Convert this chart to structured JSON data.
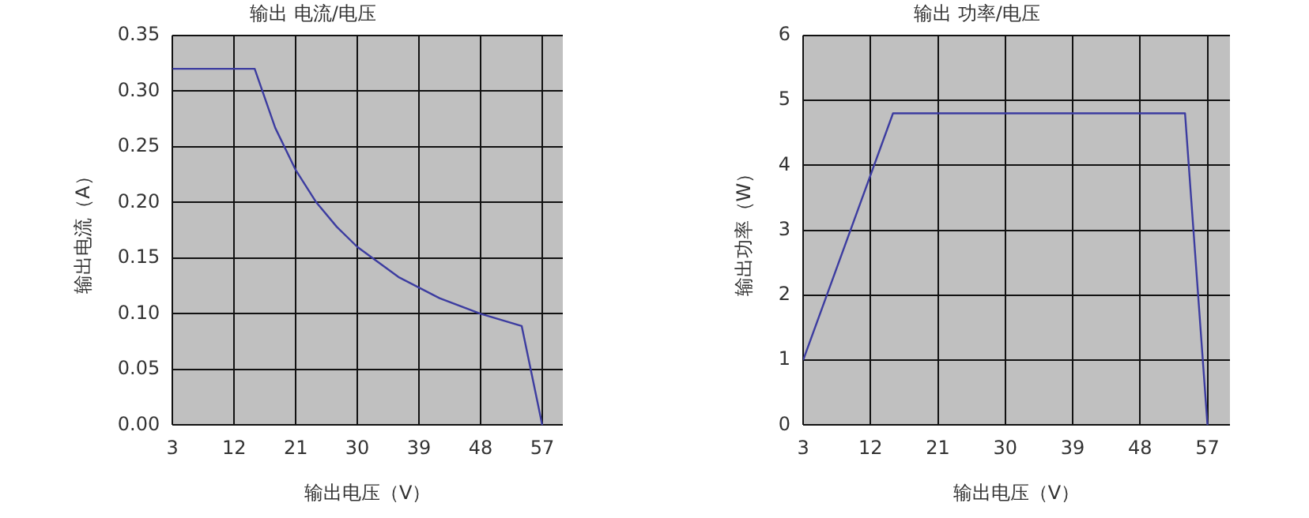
{
  "chart_data": [
    {
      "type": "line",
      "title": "输出 电流/电压",
      "xlabel": "输出电压（V）",
      "ylabel": "输出电流（A）",
      "x": [
        3,
        15,
        18,
        21,
        24,
        27,
        30,
        36,
        42,
        48,
        54,
        57
      ],
      "series": [
        {
          "color": "#3c3ca0",
          "values": [
            0.32,
            0.32,
            0.267,
            0.229,
            0.2,
            0.178,
            0.16,
            0.133,
            0.114,
            0.1,
            0.089,
            0
          ]
        }
      ],
      "xlim": [
        3,
        60
      ],
      "xticks": [
        3,
        12,
        21,
        30,
        39,
        48,
        57
      ],
      "ylim": [
        0,
        0.35
      ],
      "yticks": [
        {
          "value": 0,
          "label": "0.00"
        },
        {
          "value": 0.05,
          "label": "0.05"
        },
        {
          "value": 0.1,
          "label": "0.10"
        },
        {
          "value": 0.15,
          "label": "0.15"
        },
        {
          "value": 0.2,
          "label": "0.20"
        },
        {
          "value": 0.25,
          "label": "0.25"
        },
        {
          "value": 0.3,
          "label": "0.30"
        },
        {
          "value": 0.35,
          "label": "0.35"
        }
      ],
      "grid": true,
      "legend": false,
      "marker": "none"
    },
    {
      "type": "line",
      "title": "输出 功率/电压",
      "xlabel": "输出电压（V）",
      "ylabel": "输出功率（W）",
      "x": [
        3,
        15,
        54,
        57
      ],
      "series": [
        {
          "color": "#3c3ca0",
          "values": [
            1,
            4.8,
            4.8,
            0
          ]
        }
      ],
      "xlim": [
        3,
        60
      ],
      "xticks": [
        3,
        12,
        21,
        30,
        39,
        48,
        57
      ],
      "ylim": [
        0,
        6
      ],
      "yticks": [
        0,
        1,
        2,
        3,
        4,
        5,
        6
      ],
      "grid": true,
      "legend": false,
      "marker": "none"
    }
  ]
}
